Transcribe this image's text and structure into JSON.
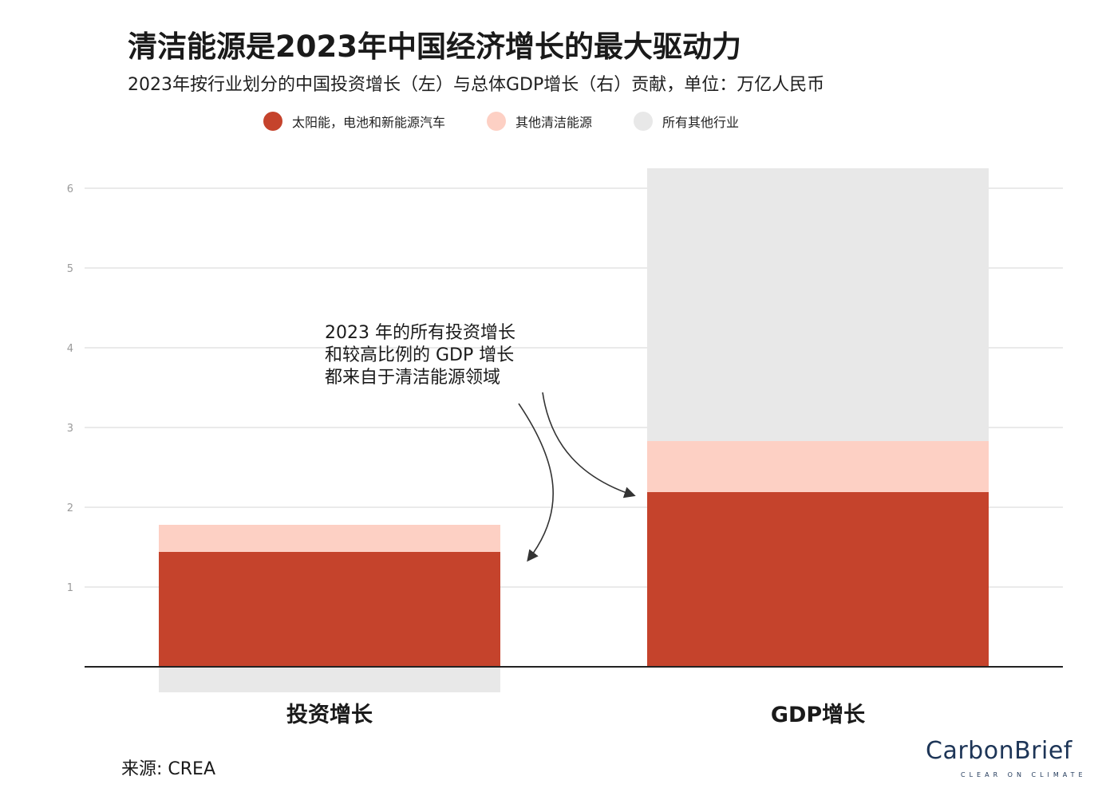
{
  "title": "清洁能源是2023年中国经济增长的最大驱动力",
  "subtitle": "2023年按行业划分的中国投资增长（左）与总体GDP增长（右）贡献，单位：万亿人民币",
  "source": "来源: CREA",
  "brand": {
    "name": "CarbonBrief",
    "tagline": "CLEAR ON CLIMATE"
  },
  "colors": {
    "solar": "#c5432c",
    "other_clean": "#fdd0c4",
    "all_other": "#e8e8e8",
    "axis": "#222222",
    "grid": "#e4e4e4",
    "arrow": "#333333"
  },
  "chart_data": {
    "type": "bar",
    "stacked": true,
    "categories": [
      "投资增长",
      "GDP增长"
    ],
    "series": [
      {
        "name": "太阳能，电池和新能源汽车",
        "values": [
          1.44,
          2.19
        ]
      },
      {
        "name": "其他清洁能源",
        "values": [
          0.34,
          0.64
        ]
      },
      {
        "name": "所有其他行业",
        "values": [
          -0.32,
          3.42
        ]
      }
    ],
    "yticks": [
      "1",
      "2",
      "3",
      "4",
      "5",
      "6"
    ],
    "ylim": [
      -0.35,
      6.3
    ],
    "grid": true,
    "legend_position": "top",
    "annotation": [
      "2023 年的所有投资增长",
      "和较高比例的 GDP 增长",
      "都来自于清洁能源领域"
    ]
  }
}
